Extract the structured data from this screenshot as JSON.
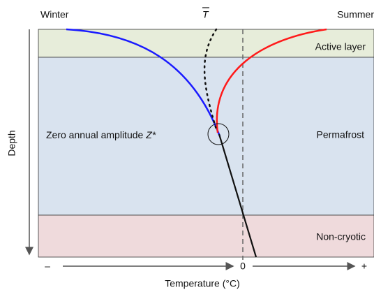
{
  "header": {
    "left": "Winter",
    "mean_symbol": "T",
    "right": "Summer"
  },
  "zones": {
    "active_layer": "Active layer",
    "permafrost": "Permafrost",
    "non_cryotic": "Non-cryotic"
  },
  "zero_amplitude": {
    "text": "Zero annual amplitude",
    "symbol": "Z*"
  },
  "axes": {
    "y_label": "Depth",
    "x_minus": "–",
    "x_zero": "0",
    "x_plus": "+",
    "x_label": "Temperature (°C)"
  }
}
